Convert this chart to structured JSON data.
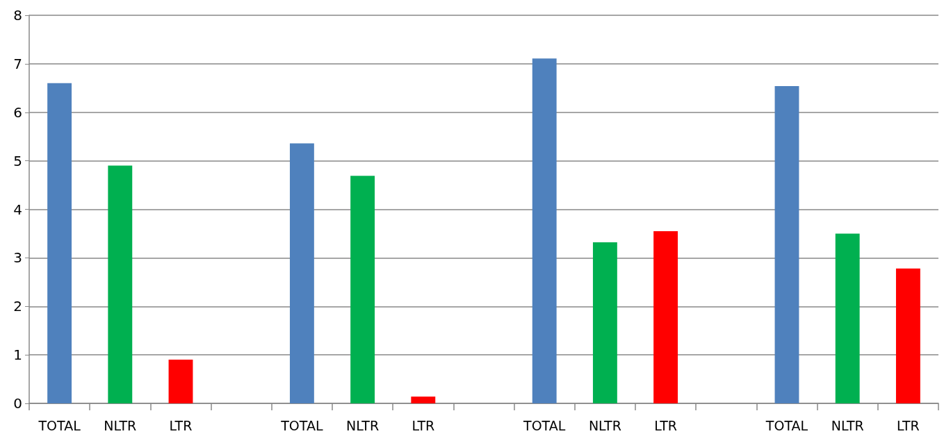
{
  "chart_data": {
    "type": "bar",
    "categories": [
      "TOTAL",
      "NLTR",
      "LTR",
      null,
      "TOTAL",
      "NLTR",
      "LTR",
      null,
      "TOTAL",
      "NLTR",
      "LTR",
      null,
      "TOTAL",
      "NLTR",
      "LTR"
    ],
    "values": [
      6.6,
      4.9,
      0.9,
      null,
      5.36,
      4.69,
      0.14,
      null,
      7.11,
      3.32,
      3.55,
      null,
      6.54,
      3.5,
      2.78
    ],
    "colors": [
      "#4f81bd",
      "#00b050",
      "#ff0000",
      null,
      "#4f81bd",
      "#00b050",
      "#ff0000",
      null,
      "#4f81bd",
      "#00b050",
      "#ff0000",
      null,
      "#4f81bd",
      "#00b050",
      "#ff0000"
    ],
    "ylim": [
      0,
      8
    ],
    "yticks": [
      0,
      1,
      2,
      3,
      4,
      5,
      6,
      7,
      8
    ],
    "grid": "y"
  }
}
